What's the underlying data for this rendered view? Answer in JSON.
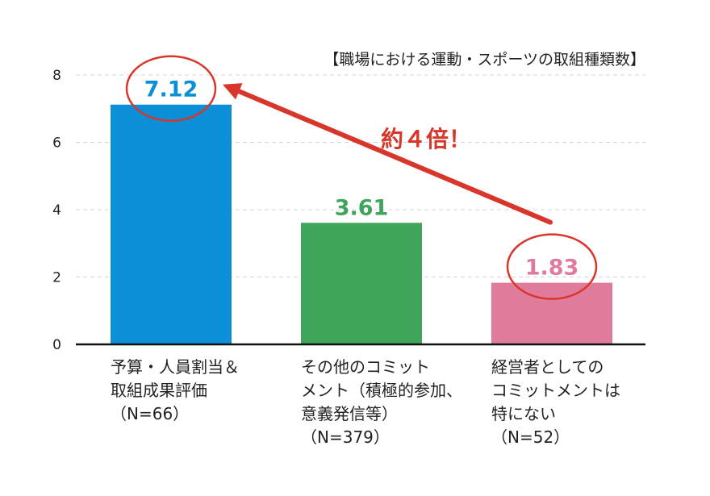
{
  "chart_data": {
    "type": "bar",
    "title": "【職場における運動・スポーツの取組種類数】",
    "categories": [
      [
        "予算・人員割当＆",
        "取組成果評価",
        "（N=66）"
      ],
      [
        "その他のコミット",
        "メント（積極的参加、",
        "意義発信等）",
        "（N=379）"
      ],
      [
        "経営者としての",
        "コミットメントは",
        "特にない",
        "（N=52）"
      ]
    ],
    "values": [
      7.12,
      3.61,
      1.83
    ],
    "value_labels": [
      "7.12",
      "3.61",
      "1.83"
    ],
    "ylim": [
      0,
      8
    ],
    "yticks": [
      0,
      2,
      4,
      6,
      8
    ],
    "ytick_labels": [
      "0",
      "2",
      "4",
      "6",
      "8"
    ],
    "grid": true,
    "colors": {
      "bars": [
        "#0b8fd6",
        "#3ea55a",
        "#e07b9c"
      ],
      "value_labels": [
        "#0b8fd6",
        "#3ea55a",
        "#e07b9c"
      ],
      "highlight": "#d9362b"
    },
    "annotation": {
      "text": "約４倍！",
      "from_category": 2,
      "to_category": 0
    }
  }
}
